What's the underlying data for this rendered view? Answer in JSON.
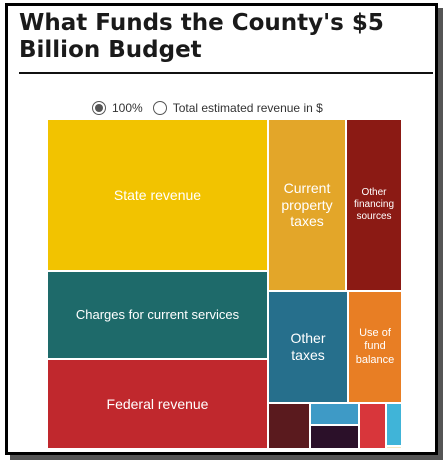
{
  "header": {
    "title": "What Funds the County's $5 Billion Budget"
  },
  "toggle": {
    "options": [
      {
        "label": "100%",
        "selected": true
      },
      {
        "label": "Total estimated revenue in $",
        "selected": false
      }
    ]
  },
  "chart_data": {
    "type": "treemap",
    "title": "What Funds the County's $5 Billion Budget",
    "unit": "percent of total estimated revenue (estimated from area)",
    "items": [
      {
        "label": "State revenue",
        "value": 26.7,
        "color": "#F2C300"
      },
      {
        "label": "Charges for current services",
        "value": 14.4,
        "color": "#1E6A6A"
      },
      {
        "label": "Federal revenue",
        "value": 17.6,
        "color": "#C0282D"
      },
      {
        "label": "Current property taxes",
        "value": 10.3,
        "color": "#E3A629"
      },
      {
        "label": "Other financing sources",
        "value": 8.5,
        "color": "#8B1A14"
      },
      {
        "label": "Other taxes",
        "value": 7.1,
        "color": "#266F8C"
      },
      {
        "label": "Use of fund balance",
        "value": 6.1,
        "color": "#E87E24"
      },
      {
        "label": "",
        "value": 2.4,
        "color": "#5A1A1E"
      },
      {
        "label": "",
        "value": 0.9,
        "color": "#3E9AC6"
      },
      {
        "label": "",
        "value": 1.1,
        "color": "#2B1029"
      },
      {
        "label": "",
        "value": 1.1,
        "color": "#D8363B"
      },
      {
        "label": "",
        "value": 1.0,
        "color": "#40B4D8"
      },
      {
        "label": "",
        "value": 0.2,
        "color": "#F5E7C0"
      }
    ]
  }
}
